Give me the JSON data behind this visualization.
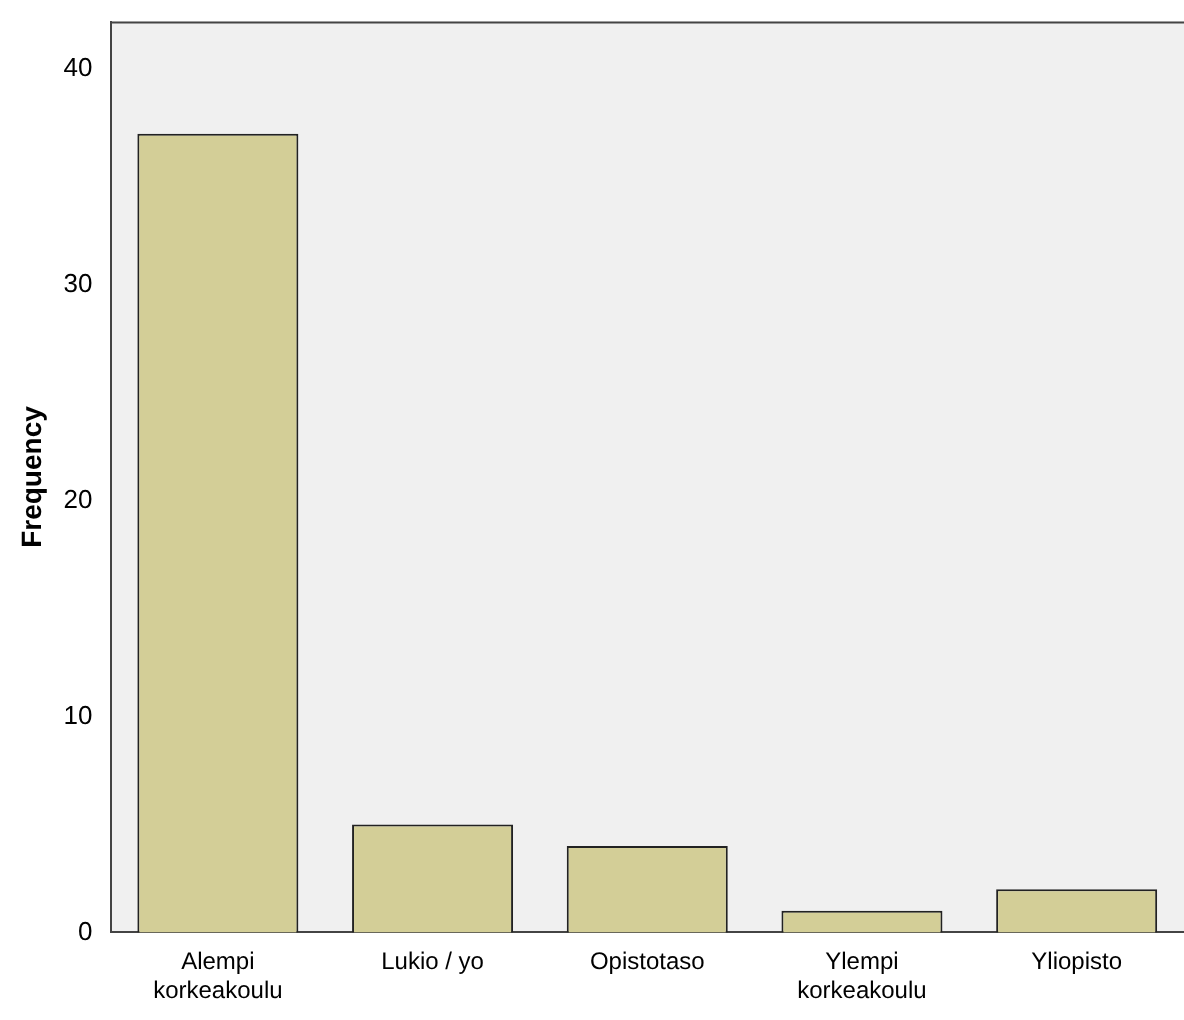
{
  "chart_data": {
    "type": "bar",
    "ylabel": "Frequency",
    "categories": [
      "Alempi korkeakoulu",
      "Lukio / yo",
      "Opistotaso",
      "Ylempi korkeakoulu",
      "Yliopisto"
    ],
    "values": [
      37,
      5,
      4,
      1,
      2
    ],
    "color": "#d3ce97",
    "ylim": [
      0,
      42.2
    ],
    "yticks": [
      0,
      10,
      20,
      30,
      40
    ],
    "grid": false,
    "legend": false
  }
}
